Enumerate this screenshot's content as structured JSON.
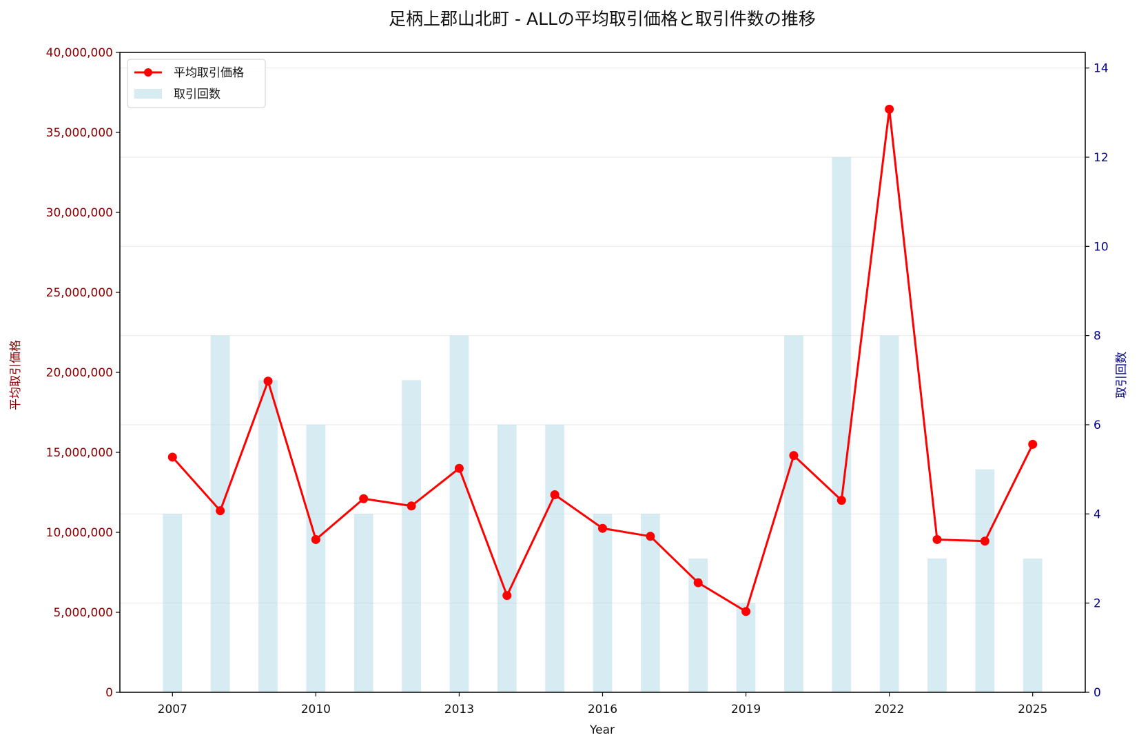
{
  "chart_data": {
    "type": "bar+line",
    "title": "足柄上郡山北町 - ALLの平均取引価格と取引件数の推移",
    "xlabel": "Year",
    "ylabel_left": "平均取引価格",
    "ylabel_right": "取引回数",
    "years": [
      2007,
      2008,
      2009,
      2010,
      2011,
      2012,
      2013,
      2014,
      2015,
      2016,
      2017,
      2018,
      2019,
      2020,
      2021,
      2022,
      2023,
      2024,
      2025
    ],
    "x_ticks": [
      2007,
      2010,
      2013,
      2016,
      2019,
      2022,
      2025
    ],
    "x_tick_labels": [
      "2007",
      "2010",
      "2013",
      "2016",
      "2019",
      "2022",
      "2025"
    ],
    "xlim": [
      2005.9,
      2026.1
    ],
    "ylim_left": [
      0,
      40000000
    ],
    "ylim_right": [
      0,
      14.35
    ],
    "left_ticks": [
      0,
      5000000,
      10000000,
      15000000,
      20000000,
      25000000,
      30000000,
      35000000,
      40000000
    ],
    "left_tick_labels": [
      "0",
      "5,000,000",
      "10,000,000",
      "15,000,000",
      "20,000,000",
      "25,000,000",
      "30,000,000",
      "35,000,000",
      "40,000,000"
    ],
    "right_ticks": [
      0,
      2,
      4,
      6,
      8,
      10,
      12,
      14
    ],
    "right_tick_labels": [
      "0",
      "2",
      "4",
      "6",
      "8",
      "10",
      "12",
      "14"
    ],
    "grid": "horizontal, right axis",
    "legend_position": "top-left",
    "series": [
      {
        "name": "平均取引価格",
        "type": "line",
        "axis": "left",
        "color": "#ff0000",
        "values": [
          14700000,
          11350000,
          19450000,
          9550000,
          12100000,
          11650000,
          14000000,
          6050000,
          12350000,
          10250000,
          9750000,
          6850000,
          5050000,
          14800000,
          12000000,
          36450000,
          9550000,
          9450000,
          15500000
        ]
      },
      {
        "name": "取引回数",
        "type": "bar",
        "axis": "right",
        "color": "#add8e6",
        "values": [
          4,
          8,
          7,
          6,
          4,
          7,
          8,
          6,
          6,
          4,
          4,
          3,
          2,
          8,
          12,
          8,
          3,
          5,
          3
        ]
      }
    ]
  }
}
